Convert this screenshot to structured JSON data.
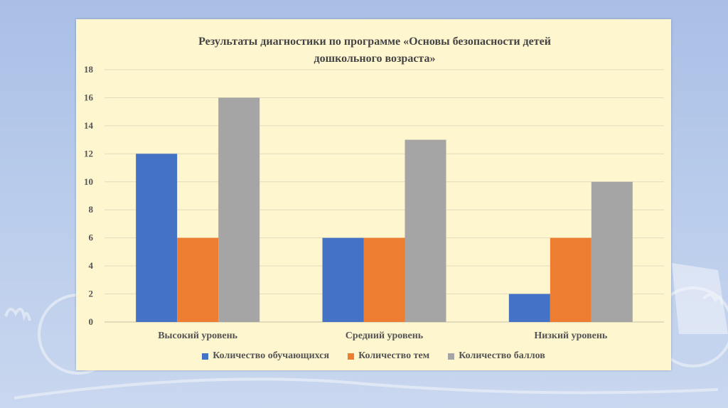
{
  "slide": {
    "background": "#b8cbeb",
    "panel_color": "#fdf6cf"
  },
  "chart_data": {
    "type": "bar",
    "title_lines": [
      "Результаты диагностики по программе «Основы безопасности детей",
      "дошкольного возраста»"
    ],
    "categories": [
      "Высокий уровень",
      "Средний уровень",
      "Низкий уровень"
    ],
    "series": [
      {
        "name": "Количество обучающихся",
        "color": "#4472c4",
        "values": [
          12,
          6,
          2
        ]
      },
      {
        "name": "Количество тем",
        "color": "#ed7d31",
        "values": [
          6,
          6,
          6
        ]
      },
      {
        "name": "Количество баллов",
        "color": "#a5a5a5",
        "values": [
          16,
          13,
          10
        ]
      }
    ],
    "ylim": [
      0,
      18
    ],
    "yticks": [
      0,
      2,
      4,
      6,
      8,
      10,
      12,
      14,
      16,
      18
    ],
    "grid": true,
    "legend_position": "bottom"
  }
}
